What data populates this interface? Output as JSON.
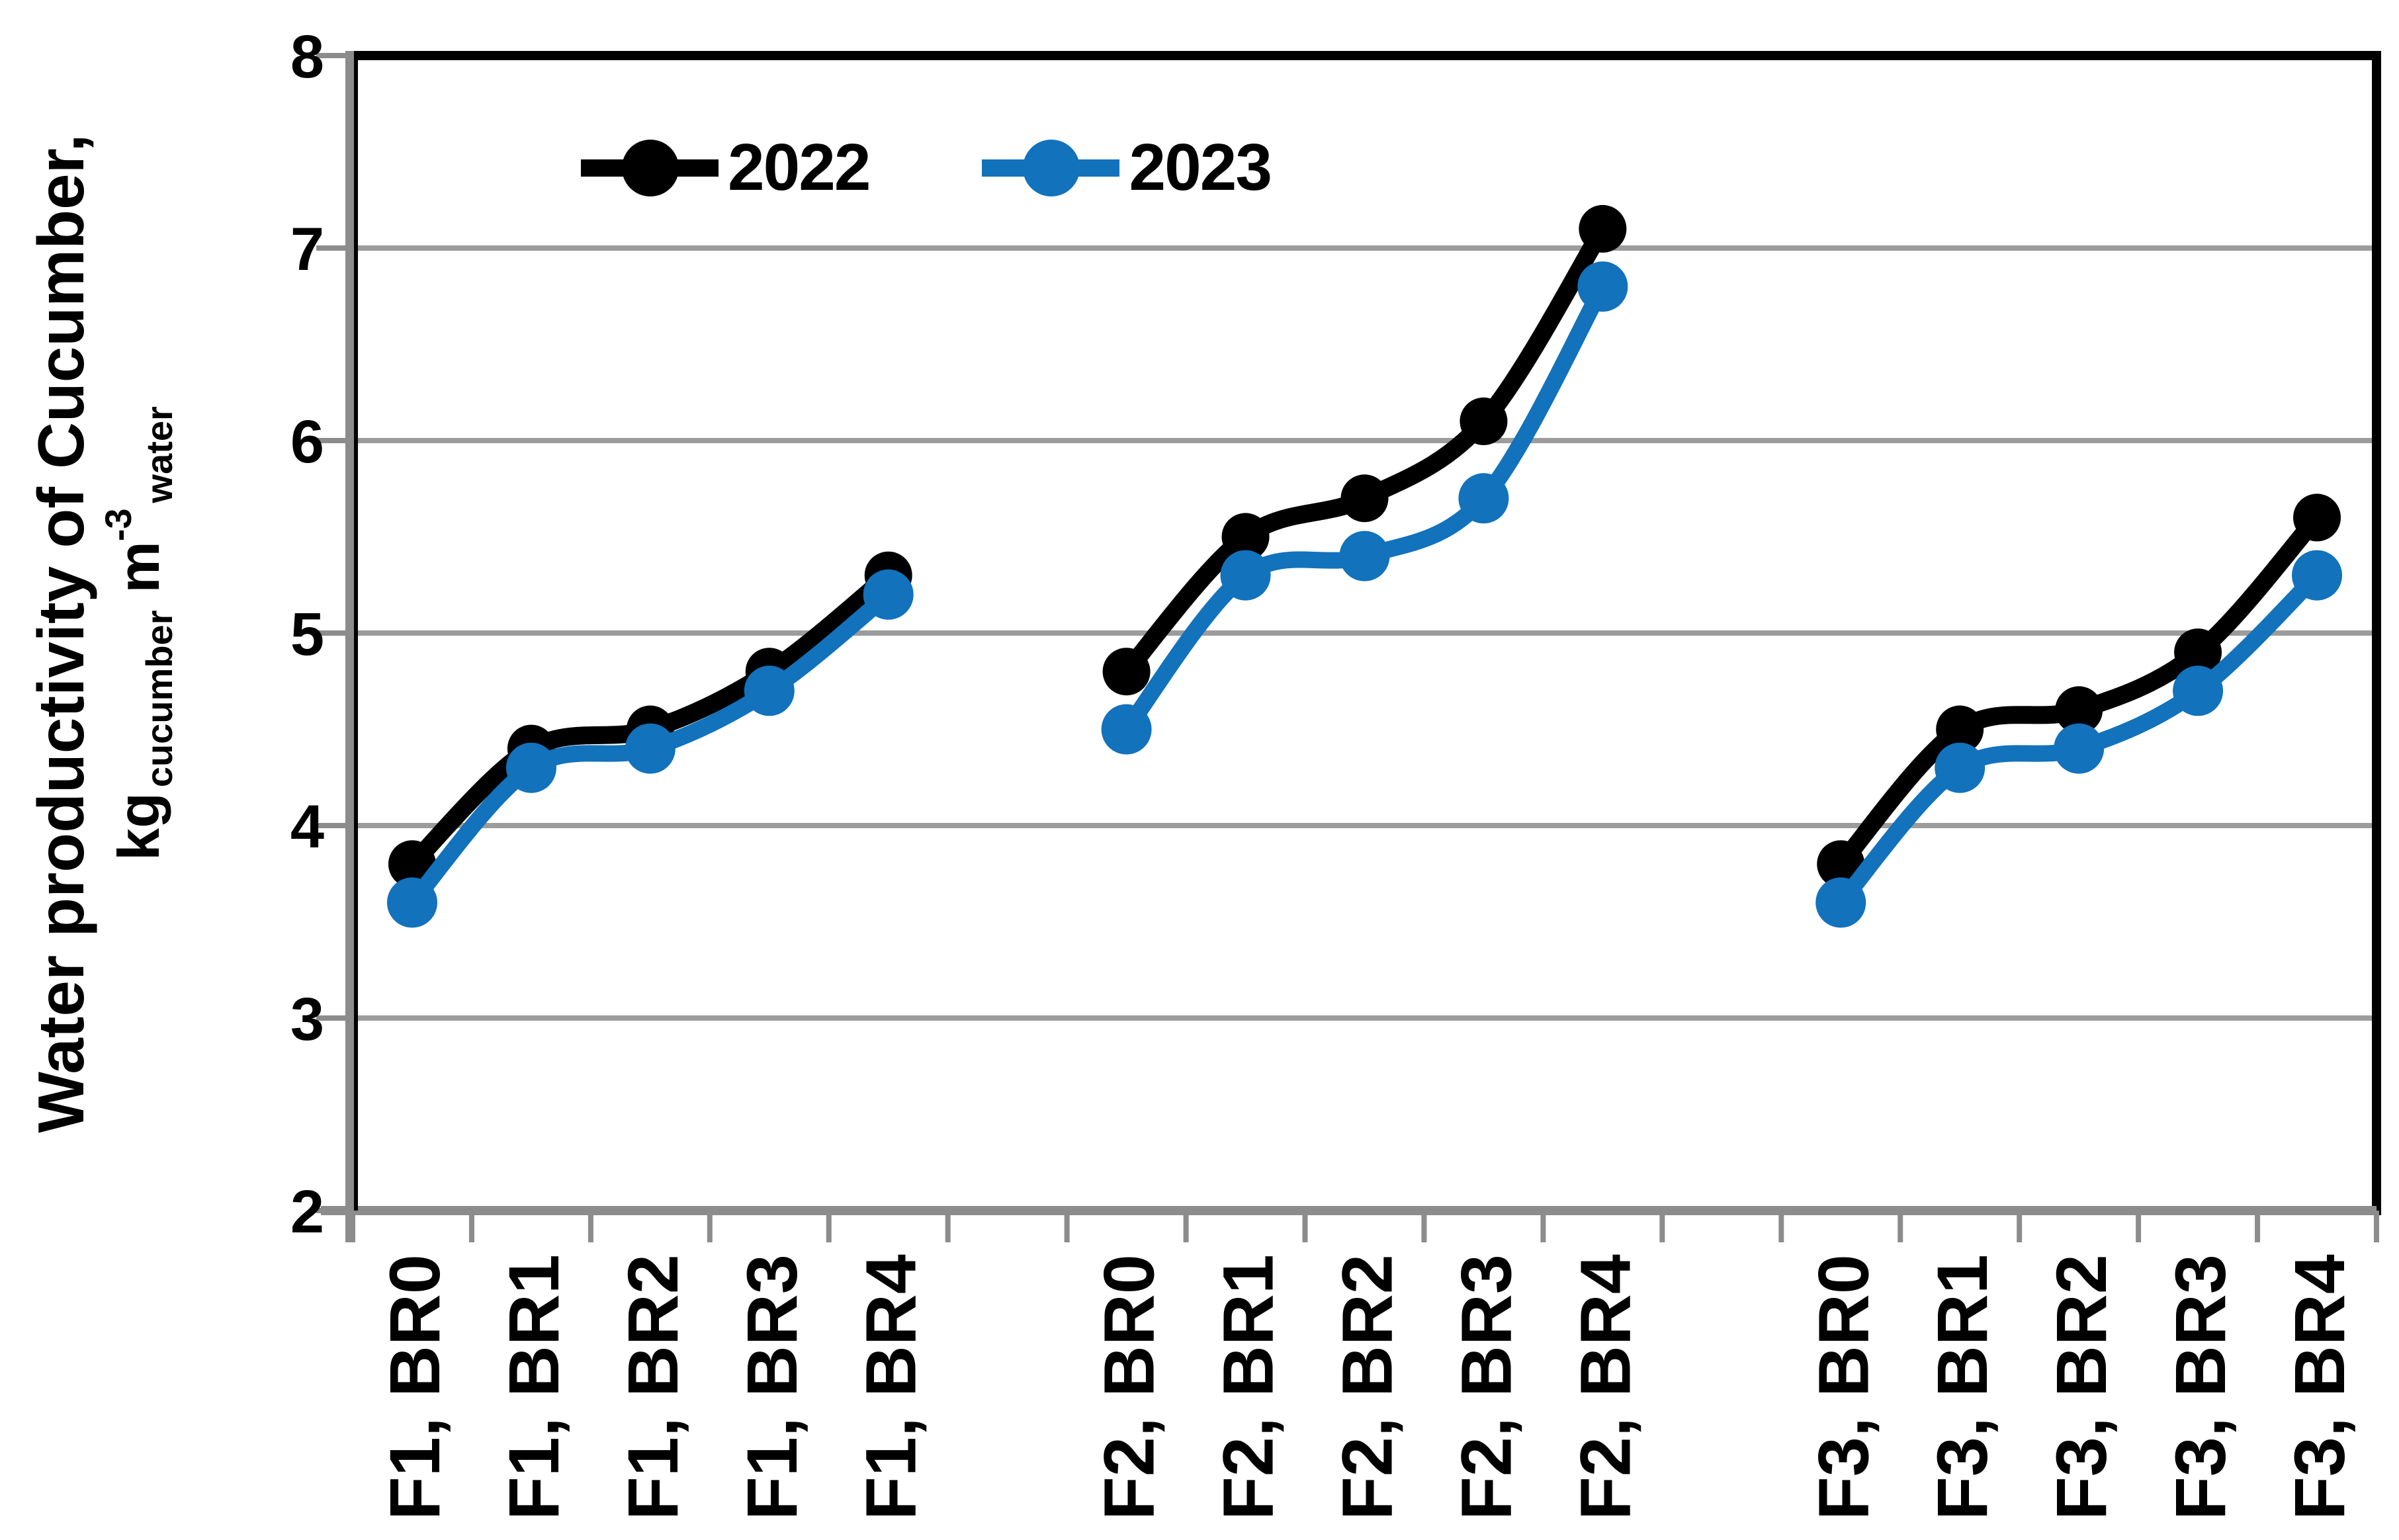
{
  "chart_data": {
    "type": "line",
    "line_style": "smooth",
    "title": "",
    "ylabel_line1": "Water productivity of Cucumber,",
    "ylabel_unit": {
      "prefix": "kg",
      "sub1": "cucumber",
      "mid": "m",
      "sup": "-3",
      "sub2": "water"
    },
    "categories": [
      "F1, BR0",
      "F1, BR1",
      "F1, BR2",
      "F1, BR3",
      "F1, BR4",
      "F2, BR0",
      "F2, BR1",
      "F2, BR2",
      "F2, BR3",
      "F2, BR4",
      "F3, BR0",
      "F3, BR1",
      "F3, BR2",
      "F3, BR3",
      "F3, BR4"
    ],
    "group_size": 5,
    "series": [
      {
        "name": "2022",
        "color": "#000000",
        "values": [
          3.8,
          4.4,
          4.5,
          4.8,
          5.3,
          4.8,
          5.5,
          5.7,
          6.1,
          7.1,
          3.8,
          4.5,
          4.6,
          4.9,
          5.6
        ]
      },
      {
        "name": "2023",
        "color": "#1272BC",
        "values": [
          3.6,
          4.3,
          4.4,
          4.7,
          5.2,
          4.5,
          5.3,
          5.4,
          5.7,
          6.8,
          3.6,
          4.3,
          4.4,
          4.7,
          5.3
        ]
      }
    ],
    "ylim": [
      2,
      8
    ],
    "yticks": [
      2,
      3,
      4,
      5,
      6,
      7,
      8
    ],
    "grid": true,
    "legend_position": "top-left-inside",
    "colors": {
      "gridline": "#9C9C9C",
      "axis_gray": "#8C8C8C",
      "border_black": "#000000",
      "background": "#FFFFFF"
    }
  }
}
